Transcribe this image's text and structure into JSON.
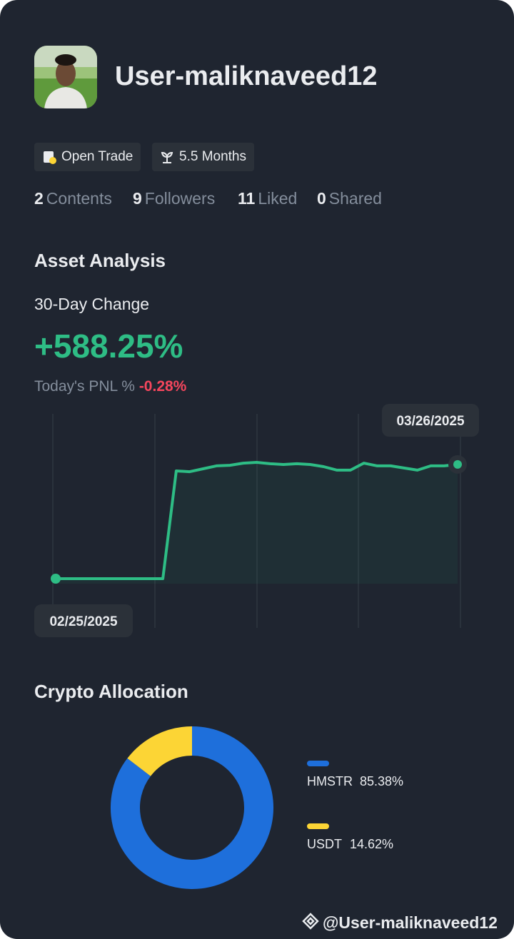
{
  "profile": {
    "name": "User-maliknaveed12"
  },
  "badges": [
    "Open Trade",
    "5.5 Months"
  ],
  "stats": [
    {
      "value": 2,
      "label": "Contents"
    },
    {
      "value": 9,
      "label": "Followers"
    },
    {
      "value": 11,
      "label": "Liked"
    },
    {
      "value": 0,
      "label": "Shared"
    }
  ],
  "asset_analysis": {
    "title": "Asset Analysis",
    "change_label": "30-Day Change",
    "change_value": "+588.25%",
    "pnl_label": "Today's PNL %",
    "pnl_value": "-0.28%"
  },
  "chart_data": [
    {
      "type": "line",
      "start_label": "02/25/2025",
      "end_label": "03/26/2025",
      "color": "#2ebd85",
      "values": [
        0,
        0,
        0,
        0,
        0,
        0,
        0,
        0,
        0,
        555,
        551,
        566,
        581,
        584,
        595,
        599,
        592,
        588,
        592,
        588,
        577,
        559,
        559,
        595,
        581,
        581,
        570,
        559,
        581,
        581,
        588.25
      ]
    },
    {
      "type": "donut",
      "title": "Crypto Allocation",
      "categories": [
        "HMSTR",
        "USDT"
      ],
      "values": [
        85.38,
        14.62
      ],
      "value_labels": [
        "85.38%",
        "14.62%"
      ],
      "colors": [
        "#1e6fdb",
        "#fcd535"
      ]
    }
  ],
  "footer": {
    "handle": "@User-maliknaveed12"
  }
}
